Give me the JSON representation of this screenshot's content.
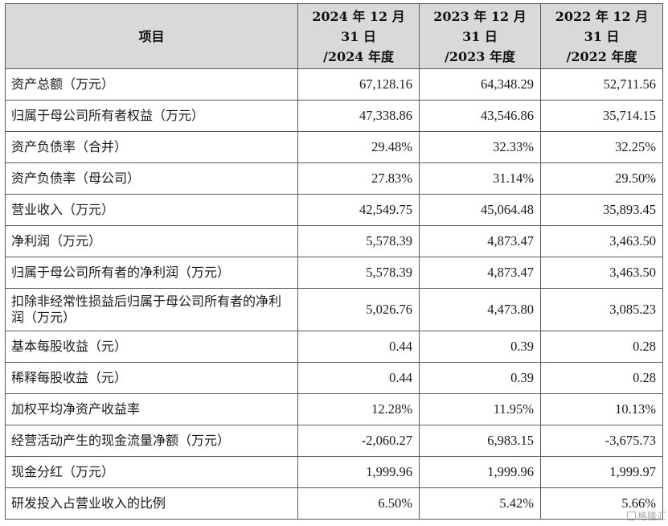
{
  "table": {
    "headers": [
      {
        "lines": [
          "项目"
        ]
      },
      {
        "lines": [
          "2024 年 12 月",
          "31 日",
          "/2024 年度"
        ]
      },
      {
        "lines": [
          "2023 年 12 月",
          "31 日",
          "/2023 年度"
        ]
      },
      {
        "lines": [
          "2022 年 12 月",
          "31 日",
          "/2022 年度"
        ]
      }
    ],
    "rows": [
      {
        "label": "资产总额（万元）",
        "values": [
          "67,128.16",
          "64,348.29",
          "52,711.56"
        ]
      },
      {
        "label": "归属于母公司所有者权益（万元）",
        "values": [
          "47,338.86",
          "43,546.86",
          "35,714.15"
        ]
      },
      {
        "label": "资产负债率（合并）",
        "values": [
          "29.48%",
          "32.33%",
          "32.25%"
        ]
      },
      {
        "label": "资产负债率（母公司）",
        "values": [
          "27.83%",
          "31.14%",
          "29.50%"
        ]
      },
      {
        "label": "营业收入（万元）",
        "values": [
          "42,549.75",
          "45,064.48",
          "35,893.45"
        ]
      },
      {
        "label": "净利润（万元）",
        "values": [
          "5,578.39",
          "4,873.47",
          "3,463.50"
        ]
      },
      {
        "label": "归属于母公司所有者的净利润（万元）",
        "values": [
          "5,578.39",
          "4,873.47",
          "3,463.50"
        ]
      },
      {
        "label": "扣除非经常性损益后归属于母公司所有者的净利润（万元）",
        "values": [
          "5,026.76",
          "4,473.80",
          "3,085.23"
        ]
      },
      {
        "label": "基本每股收益（元）",
        "values": [
          "0.44",
          "0.39",
          "0.28"
        ]
      },
      {
        "label": "稀释每股收益（元）",
        "values": [
          "0.44",
          "0.39",
          "0.28"
        ]
      },
      {
        "label": "加权平均净资产收益率",
        "values": [
          "12.28%",
          "11.95%",
          "10.13%"
        ]
      },
      {
        "label": "经营活动产生的现金流量净额（万元）",
        "values": [
          "-2,060.27",
          "6,983.15",
          "-3,675.73"
        ]
      },
      {
        "label": "现金分红（万元）",
        "values": [
          "1,999.96",
          "1,999.96",
          "1,999.97"
        ]
      },
      {
        "label": "研发投入占营业收入的比例",
        "values": [
          "6.50%",
          "5.42%",
          "5.66%"
        ]
      }
    ]
  },
  "watermark": {
    "text": "格隆汇",
    "icon": "brand-logo-icon"
  }
}
